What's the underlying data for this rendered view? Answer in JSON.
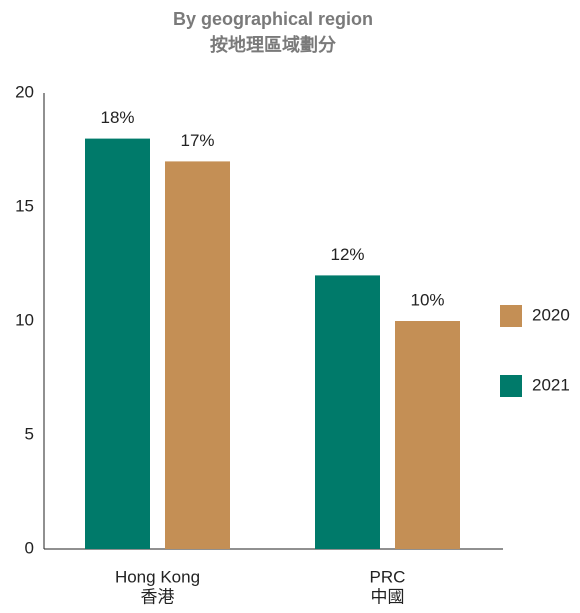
{
  "chart_data": {
    "type": "bar",
    "title": "By geographical region",
    "subtitle": "按地理區域劃分",
    "categories": [
      [
        "Hong Kong",
        "香港"
      ],
      [
        "PRC",
        "中國"
      ]
    ],
    "series": [
      {
        "name": "2020",
        "color": "#c48f55",
        "values": [
          17,
          10
        ],
        "value_labels": [
          "17%",
          "10%"
        ]
      },
      {
        "name": "2021",
        "color": "#007a6a",
        "values": [
          18,
          12
        ],
        "value_labels": [
          "18%",
          "12%"
        ]
      }
    ],
    "ylim": [
      0,
      20
    ],
    "yticks": [
      0,
      5,
      10,
      15,
      20
    ],
    "grid": false,
    "legend": "right"
  }
}
